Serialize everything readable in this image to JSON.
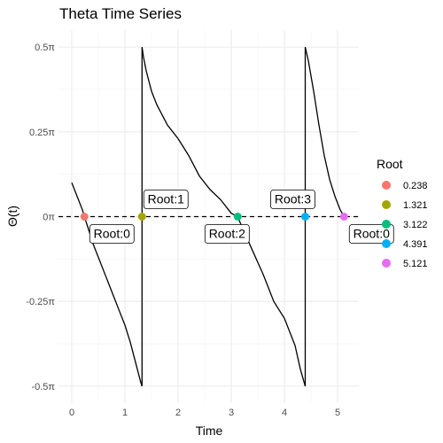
{
  "chart_data": {
    "type": "line",
    "title": "Theta Time Series",
    "xlabel": "Time",
    "ylabel": "Θ(t)",
    "xlim": [
      -0.25,
      5.4
    ],
    "ylim": [
      -0.55,
      0.55
    ],
    "x_ticks": [
      0,
      1,
      2,
      3,
      4,
      5
    ],
    "x_tick_labels": [
      "0",
      "1",
      "2",
      "3",
      "4",
      "5"
    ],
    "y_ticks": [
      -0.5,
      -0.25,
      0,
      0.25,
      0.5
    ],
    "y_tick_labels": [
      "-0.5π",
      "-0.25π",
      "0π",
      "0.25π",
      "0.5π"
    ],
    "y_units": "π",
    "grid": true,
    "reference_line": {
      "y": 0,
      "style": "dashed",
      "color": "#000000"
    },
    "series": [
      {
        "color": "#000000",
        "x": [
          0,
          0.1,
          0.2,
          0.238,
          0.3,
          0.4,
          0.5,
          0.6,
          0.7,
          0.8,
          0.9,
          1.0,
          1.1,
          1.2,
          1.25,
          1.3,
          1.321,
          1.321,
          1.35,
          1.4,
          1.5,
          1.6,
          1.7,
          1.8,
          1.9,
          2.0,
          2.2,
          2.4,
          2.6,
          2.8,
          3.0,
          3.122,
          3.2,
          3.4,
          3.6,
          3.8,
          4.0,
          4.2,
          4.3,
          4.391,
          4.391,
          4.45,
          4.55,
          4.65,
          4.75,
          4.85,
          4.95,
          5.05,
          5.121
        ],
        "y": [
          0.1,
          0.06,
          0.02,
          0.0,
          -0.03,
          -0.08,
          -0.12,
          -0.16,
          -0.2,
          -0.24,
          -0.28,
          -0.32,
          -0.37,
          -0.43,
          -0.46,
          -0.49,
          -0.5,
          0.5,
          0.47,
          0.43,
          0.37,
          0.33,
          0.3,
          0.27,
          0.25,
          0.23,
          0.18,
          0.12,
          0.08,
          0.05,
          0.01,
          0.0,
          -0.03,
          -0.1,
          -0.17,
          -0.25,
          -0.3,
          -0.38,
          -0.45,
          -0.5,
          0.5,
          0.46,
          0.37,
          0.27,
          0.18,
          0.11,
          0.06,
          0.02,
          0.0
        ]
      }
    ],
    "roots": [
      {
        "x": 0.238,
        "y": 0,
        "legend": "0.238",
        "color": "#F8766D",
        "label": "Root:0",
        "label_pos": "below-right"
      },
      {
        "x": 1.321,
        "y": 0,
        "legend": "1.321",
        "color": "#A3A500",
        "label": "Root:1",
        "label_pos": "above-right"
      },
      {
        "x": 3.122,
        "y": 0,
        "legend": "3.122",
        "color": "#00BF7D",
        "label": "Root:2",
        "label_pos": "below-left"
      },
      {
        "x": 4.391,
        "y": 0,
        "legend": "4.391",
        "color": "#00B0F6",
        "label": "Root:3",
        "label_pos": "above-left"
      },
      {
        "x": 5.121,
        "y": 0,
        "legend": "5.121",
        "color": "#E76BF3",
        "label": "Root:0",
        "label_pos": "below-right"
      }
    ],
    "legend": {
      "title": "Root",
      "position": "right"
    }
  }
}
